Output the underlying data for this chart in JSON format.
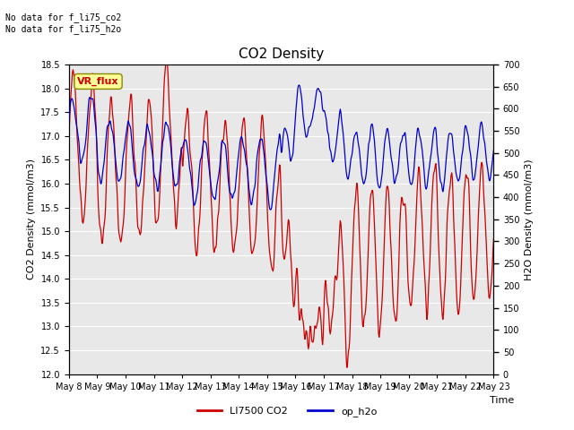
{
  "title": "CO2 Density",
  "xlabel": "Time",
  "ylabel_left": "CO2 Density (mmol/m3)",
  "ylabel_right": "H2O Density (mmol/m3)",
  "ylim_left": [
    12.0,
    18.5
  ],
  "ylim_right": [
    0,
    700
  ],
  "yticks_left": [
    12.0,
    12.5,
    13.0,
    13.5,
    14.0,
    14.5,
    15.0,
    15.5,
    16.0,
    16.5,
    17.0,
    17.5,
    18.0,
    18.5
  ],
  "yticks_right": [
    0,
    50,
    100,
    150,
    200,
    250,
    300,
    350,
    400,
    450,
    500,
    550,
    600,
    650,
    700
  ],
  "xtick_labels": [
    "May 8",
    "May 9",
    "May 10",
    "May 11",
    "May 12",
    "May 13",
    "May 14",
    "May 15",
    "May 16",
    "May 17",
    "May 18",
    "May 19",
    "May 20",
    "May 21",
    "May 22",
    "May 23"
  ],
  "annotation_text": "No data for f_li75_co2\nNo data for f_li75_h2o",
  "textbox_label": "VR_flux",
  "legend_entries": [
    "LI7500 CO2",
    "op_h2o"
  ],
  "legend_colors": [
    "#cc0000",
    "#0000cc"
  ],
  "co2_color": "#cc0000",
  "h2o_color": "#0000cc",
  "background_color": "#ffffff",
  "plot_bg_color": "#e8e8e8",
  "grid_color": "#ffffff",
  "title_fontsize": 11,
  "axis_fontsize": 8,
  "tick_fontsize": 7,
  "legend_fontsize": 8
}
